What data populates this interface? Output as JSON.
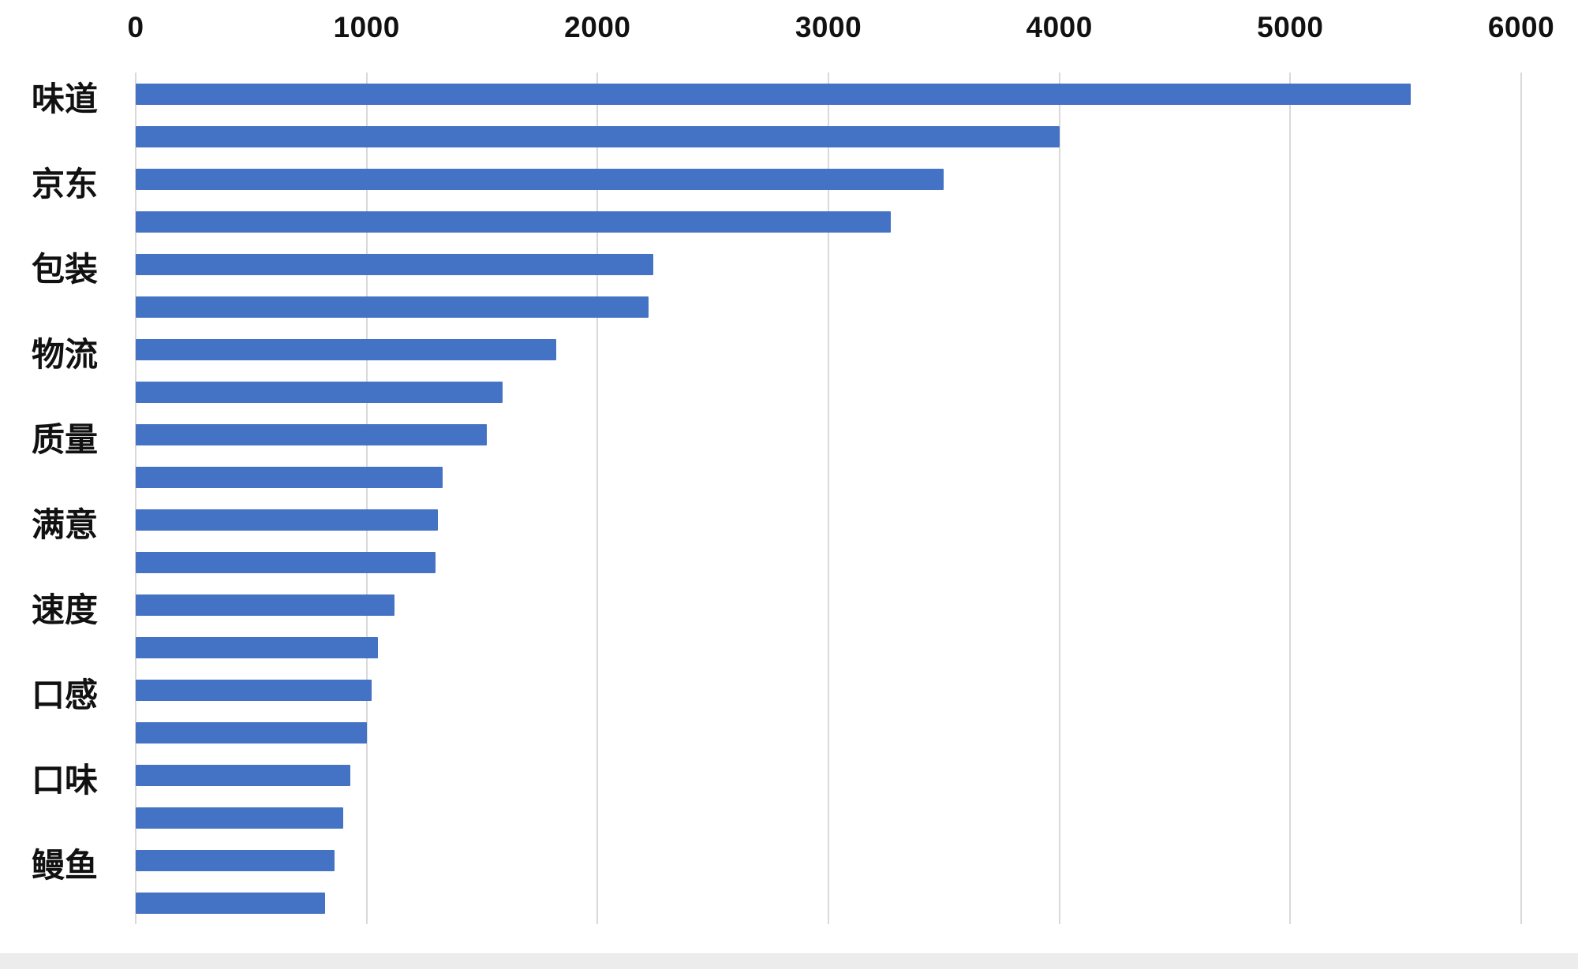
{
  "chart_data": {
    "type": "bar",
    "orientation": "horizontal",
    "title": "",
    "xlabel": "",
    "ylabel": "",
    "xlim": [
      0,
      6000
    ],
    "x_ticks": [
      "0",
      "1000",
      "2000",
      "3000",
      "4000",
      "5000",
      "6000"
    ],
    "x_tick_values": [
      0,
      1000,
      2000,
      3000,
      4000,
      5000,
      6000
    ],
    "grid": true,
    "legend": "none",
    "bar_color": "#4472C4",
    "gridline_color": "#d9d9d9",
    "bars": [
      {
        "label": "味道",
        "value": 5520
      },
      {
        "label": "",
        "value": 4000
      },
      {
        "label": "京东",
        "value": 3500
      },
      {
        "label": "",
        "value": 3270
      },
      {
        "label": "包装",
        "value": 2240
      },
      {
        "label": "",
        "value": 2220
      },
      {
        "label": "物流",
        "value": 1820
      },
      {
        "label": "",
        "value": 1590
      },
      {
        "label": "质量",
        "value": 1520
      },
      {
        "label": "",
        "value": 1330
      },
      {
        "label": "满意",
        "value": 1310
      },
      {
        "label": "",
        "value": 1300
      },
      {
        "label": "速度",
        "value": 1120
      },
      {
        "label": "",
        "value": 1050
      },
      {
        "label": "口感",
        "value": 1020
      },
      {
        "label": "",
        "value": 1000
      },
      {
        "label": "口味",
        "value": 930
      },
      {
        "label": "",
        "value": 900
      },
      {
        "label": "鳗鱼",
        "value": 860
      },
      {
        "label": "",
        "value": 820
      }
    ]
  }
}
